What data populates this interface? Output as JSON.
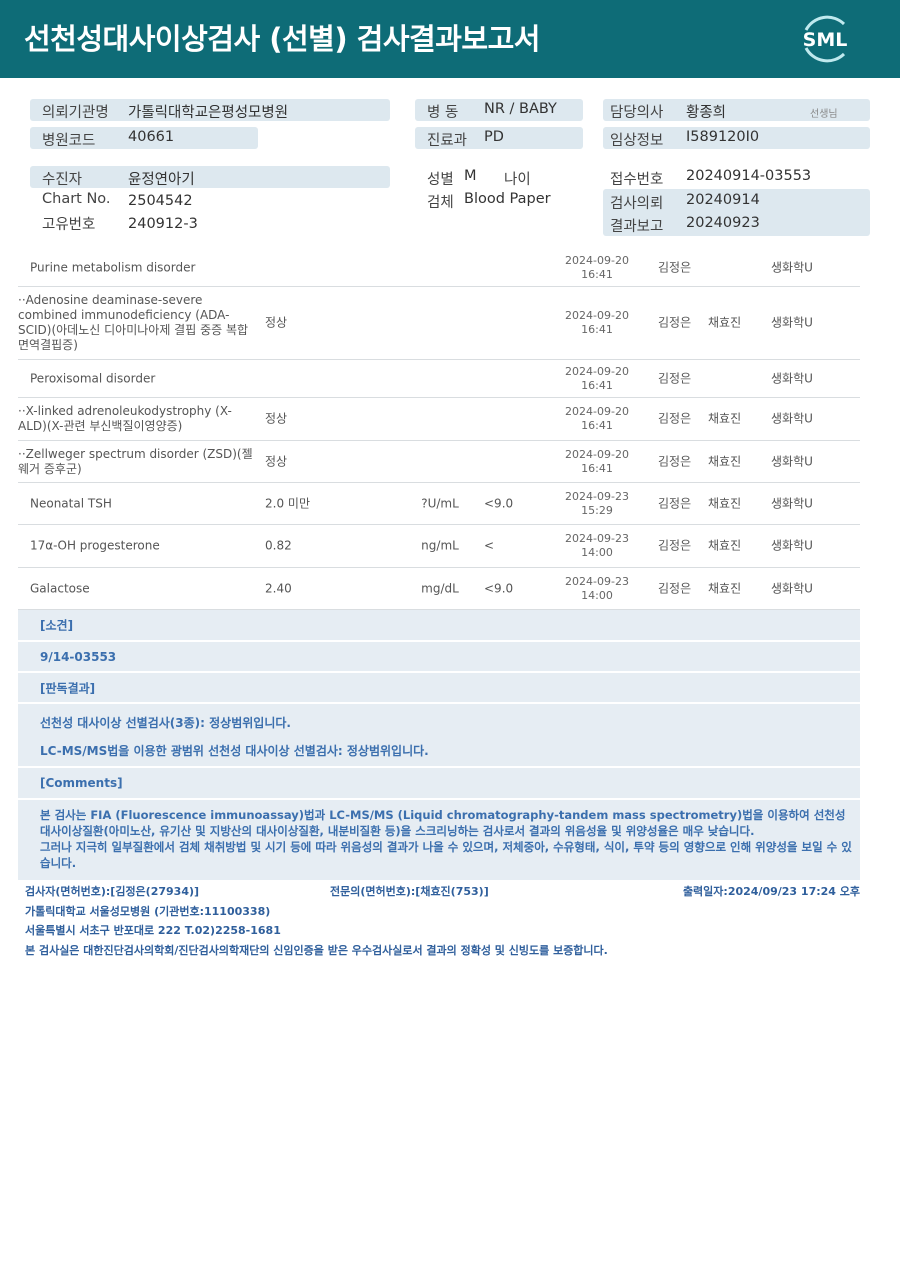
{
  "header": {
    "title": "선천성대사이상검사 (선별) 검사결과보고서",
    "logo_text": "SML"
  },
  "info": {
    "institution": {
      "label": "의뢰기관명",
      "value": "가톨릭대학교은평성모병원"
    },
    "hospital_code": {
      "label": "병원코드",
      "value": "40661"
    },
    "ward": {
      "label": "병 동",
      "value": "NR / BABY"
    },
    "department": {
      "label": "진료과",
      "value": "PD"
    },
    "doctor": {
      "label": "담당의사",
      "value": "황종희",
      "suffix": "선생님"
    },
    "clinical": {
      "label": "임상정보",
      "value": "I589120I0"
    },
    "patient": {
      "label": "수진자",
      "value": "윤정연아기"
    },
    "chart_no": {
      "label": "Chart No.",
      "value": "2504542"
    },
    "unique_no": {
      "label": "고유번호",
      "value": "240912-3"
    },
    "sex": {
      "label": "성별",
      "value": "M"
    },
    "age": {
      "label": "나이",
      "value": ""
    },
    "specimen": {
      "label": "검체",
      "value": "Blood Paper"
    },
    "receipt_no": {
      "label": "접수번호",
      "value": "20240914-03553"
    },
    "request_date": {
      "label": "검사의뢰",
      "value": "20240914"
    },
    "report_date": {
      "label": "결과보고",
      "value": "20240923"
    }
  },
  "results": [
    {
      "name": "Purine metabolism disorder",
      "result": "",
      "unit": "",
      "ref": "",
      "date": "2024-09-20",
      "time": "16:41",
      "tester": "김정은",
      "specialist": "",
      "dept": "생화학U",
      "indent": false
    },
    {
      "name": "··Adenosine deaminase-severe combined immunodeficiency (ADA-SCID)(아데노신 디아미나아제 결핍 중증 복합면역결핍증)",
      "result": "정상",
      "unit": "",
      "ref": "",
      "date": "2024-09-20",
      "time": "16:41",
      "tester": "김정은",
      "specialist": "채효진",
      "dept": "생화학U",
      "indent": true
    },
    {
      "name": "Peroxisomal disorder",
      "result": "",
      "unit": "",
      "ref": "",
      "date": "2024-09-20",
      "time": "16:41",
      "tester": "김정은",
      "specialist": "",
      "dept": "생화학U",
      "indent": false
    },
    {
      "name": "··X-linked adrenoleukodystrophy (X-ALD)(X-관련 부신백질이영양증)",
      "result": "정상",
      "unit": "",
      "ref": "",
      "date": "2024-09-20",
      "time": "16:41",
      "tester": "김정은",
      "specialist": "채효진",
      "dept": "생화학U",
      "indent": true
    },
    {
      "name": "··Zellweger spectrum disorder (ZSD)(젤웨거 증후군)",
      "result": "정상",
      "unit": "",
      "ref": "",
      "date": "2024-09-20",
      "time": "16:41",
      "tester": "김정은",
      "specialist": "채효진",
      "dept": "생화학U",
      "indent": true
    },
    {
      "name": "Neonatal TSH",
      "result": "2.0 미만",
      "unit": "?U/mL",
      "ref": "<9.0",
      "date": "2024-09-23",
      "time": "15:29",
      "tester": "김정은",
      "specialist": "채효진",
      "dept": "생화학U",
      "indent": false
    },
    {
      "name": "17α-OH progesterone",
      "result": "0.82",
      "unit": "ng/mL",
      "ref": "<",
      "date": "2024-09-23",
      "time": "14:00",
      "tester": "김정은",
      "specialist": "채효진",
      "dept": "생화학U",
      "indent": false
    },
    {
      "name": "Galactose",
      "result": "2.40",
      "unit": "mg/dL",
      "ref": "<9.0",
      "date": "2024-09-23",
      "time": "14:00",
      "tester": "김정은",
      "specialist": "채효진",
      "dept": "생화학U",
      "indent": false
    }
  ],
  "notes": {
    "opinion_title": "[소견]",
    "opinion": "9/14-03553",
    "judgment_title": "[판독결과]",
    "judgment_1": "선천성 대사이상 선별검사(3종): 정상범위입니다.",
    "judgment_2": "LC-MS/MS법을 이용한 광범위 선천성 대사이상 선별검사: 정상범위입니다.",
    "comments_title": "[Comments]",
    "comments_1": "본 검사는 FIA (Fluorescence immunoassay)법과 LC-MS/MS (Liquid chromatography-tandem mass spectrometry)법을 이용하여 선천성 대사이상질환(아미노산, 유기산 및 지방산의 대사이상질환, 내분비질환 등)을 스크리닝하는 검사로서 결과의 위음성율 및 위양성율은 매우 낮습니다.",
    "comments_2": "그러나 지극히 일부질환에서 검체 채취방법 및 시기 등에 따라 위음성의 결과가 나올 수 있으며, 저체중아, 수유형태, 식이, 투약 등의 영향으로 인해 위양성을 보일 수 있습니다."
  },
  "footer": {
    "tester": "검사자(면허번호):[김정은(27934)]",
    "specialist": "전문의(면허번호):[채효진(753)]",
    "printed": "출력일자:2024/09/23 17:24 오후",
    "lab": "가톨릭대학교 서울성모병원 (기관번호:11100338)",
    "address": "서울특별시 서초구 반포대로 222 T.02)2258-1681",
    "certification": "본 검사실은 대한진단검사의학회/진단검사의학재단의 신임인증을 받은 우수검사실로서 결과의 정확성 및 신빙도를 보증합니다."
  },
  "colors": {
    "header": "#0e6c77",
    "box": "#dde8ef",
    "notes_bg": "#e6edf3",
    "notes_text": "#3b6fae"
  }
}
